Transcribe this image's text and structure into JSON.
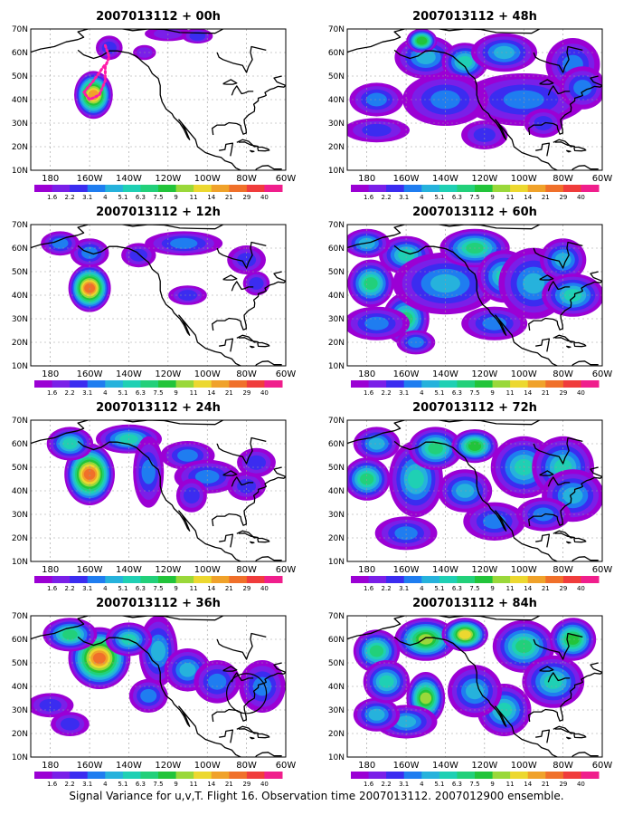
{
  "panels": [
    {
      "title": "2007013112 + 00h",
      "lead_hours": 0
    },
    {
      "title": "2007013112 + 48h",
      "lead_hours": 48
    },
    {
      "title": "2007013112 + 12h",
      "lead_hours": 12
    },
    {
      "title": "2007013112 + 60h",
      "lead_hours": 60
    },
    {
      "title": "2007013112 + 24h",
      "lead_hours": 24
    },
    {
      "title": "2007013112 + 72h",
      "lead_hours": 72
    },
    {
      "title": "2007013112 + 36h",
      "lead_hours": 36
    },
    {
      "title": "2007013112 + 84h",
      "lead_hours": 84
    }
  ],
  "lat_labels": [
    "70N",
    "60N",
    "50N",
    "40N",
    "30N",
    "20N",
    "10N"
  ],
  "lon_labels": [
    "180",
    "160W",
    "140W",
    "120W",
    "100W",
    "80W",
    "60W"
  ],
  "colorbar": {
    "levels": [
      "1.6",
      "2.2",
      "3.1",
      "4",
      "5.1",
      "6.3",
      "7.5",
      "9",
      "11",
      "14",
      "21",
      "29",
      "40"
    ],
    "colors": [
      "#9b00d4",
      "#7a1fe8",
      "#3b2cf0",
      "#1f7df0",
      "#26b2dc",
      "#1fd0b4",
      "#22d07a",
      "#22c43a",
      "#9ad83a",
      "#ecd830",
      "#f0a22a",
      "#f0702a",
      "#f03c3c",
      "#f01e8c"
    ]
  },
  "caption": "Signal Variance for u,v,T. Flight 16. Observation time 2007013112. 2007012900 ensemble."
}
